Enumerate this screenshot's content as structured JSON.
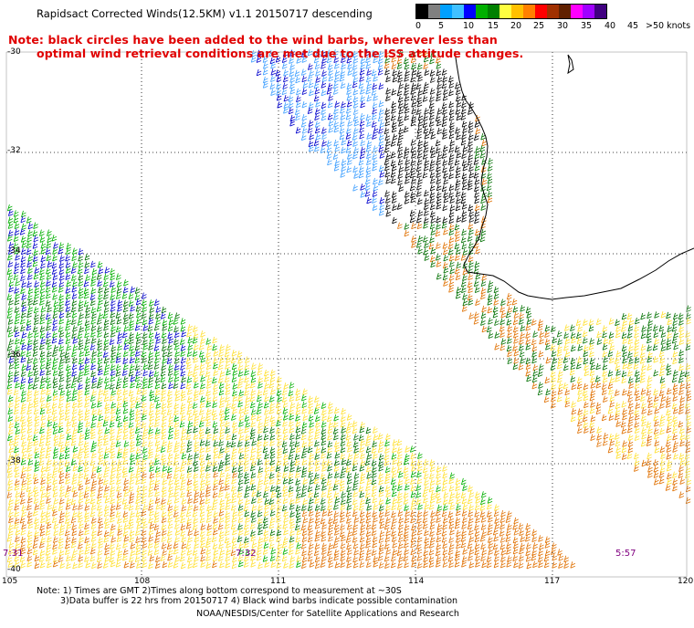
{
  "header": {
    "title": "Rapidsact Corrected Winds(12.5KM) v1.1 20150717 descending"
  },
  "note": {
    "line1": "Note: black circles have been added to the wind barbs, wherever less than",
    "line2": "optimal wind retrieval conditions are met due to the ISS attitude changes."
  },
  "legend": {
    "labels": [
      "0",
      "5",
      "10",
      "15",
      "20",
      "25",
      "30",
      "35",
      "40",
      "45",
      ">50 knots"
    ],
    "colors": [
      "#000000",
      "#808080",
      "#00a0ff",
      "#40c0ff",
      "#0000ff",
      "#00b000",
      "#008000",
      "#ffff40",
      "#ffc000",
      "#ff8000",
      "#ff0000",
      "#a03000",
      "#602000",
      "#ff00ff",
      "#a000ff",
      "#400080"
    ]
  },
  "axes": {
    "lat_labels": [
      "-30",
      "-32",
      "-34",
      "-36",
      "-38",
      "-40"
    ],
    "lon_labels": [
      "105",
      "108",
      "111",
      "114",
      "117",
      "120"
    ]
  },
  "times": {
    "t1": "7:31",
    "t2": "7:32",
    "t3": "5:57"
  },
  "footnote": {
    "line1": "Note: 1) Times are GMT 2)Times along bottom correspond to measurement at ~30S",
    "line2": "3)Data buffer is 22 hrs from 20150717 4) Black wind barbs indicate possible contamination",
    "credit": "NOAA/NESDIS/Center for Satellite Applications and Research"
  },
  "wind_colors": {
    "contaminated": "#000000",
    "light_blue": "#40a0ff",
    "blue": "#0000cc",
    "green": "#00b000",
    "dark_green": "#007000",
    "yellow": "#ffe030",
    "orange": "#e07000",
    "coast": "#000000"
  }
}
